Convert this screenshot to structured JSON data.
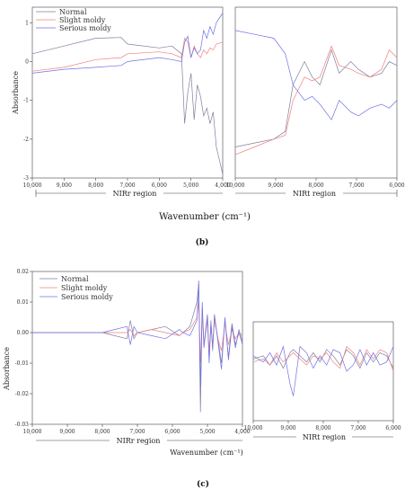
{
  "figure": {
    "panel_labels": [
      "(b)",
      "(c)"
    ],
    "ylabel": "Absorbance",
    "xlabel": "Wavenumber (cm⁻¹)",
    "region_labels": [
      "NIRr region",
      "NIRt region"
    ]
  },
  "colors": {
    "Normal": "#7f7f9e",
    "Slight moldy": "#f08080",
    "Serious moldy": "#7070e8"
  },
  "chart_data": [
    {
      "type": "line",
      "panel": "(b)",
      "ylabel": "Absorbance",
      "xlabel": "Wavenumber (cm⁻¹)",
      "legend": [
        "Normal",
        "Slight moldy",
        "Serious moldy"
      ],
      "legend_placement": "top-left",
      "left": {
        "region": "NIRr region",
        "xlim": [
          10000,
          4000
        ],
        "x_ticks": [
          "10,000",
          "9,000",
          "8,000",
          "7,000",
          "6,000",
          "5,000",
          "4,000"
        ],
        "ylim": [
          -3,
          1.4
        ],
        "y_ticks": [
          "-3",
          "-2",
          "-1",
          "0",
          "1"
        ],
        "x": [
          10000,
          9000,
          8000,
          7200,
          7000,
          6000,
          5600,
          5300,
          5200,
          5100,
          5000,
          4900,
          4800,
          4700,
          4600,
          4500,
          4400,
          4300,
          4200,
          4000
        ],
        "series": [
          {
            "name": "Normal",
            "values": [
              0.2,
              0.4,
              0.6,
              0.62,
              0.45,
              0.35,
              0.4,
              0.2,
              -1.6,
              -0.8,
              -0.3,
              -1.5,
              -0.6,
              -0.9,
              -1.4,
              -1.2,
              -1.6,
              -1.3,
              -2.2,
              -2.9
            ]
          },
          {
            "name": "Slight moldy",
            "values": [
              -0.25,
              -0.15,
              0.05,
              0.1,
              0.2,
              0.25,
              0.2,
              0.1,
              0.6,
              0.5,
              0.1,
              0.4,
              0.2,
              0.1,
              0.3,
              0.2,
              0.35,
              0.3,
              0.45,
              0.5
            ]
          },
          {
            "name": "Serious moldy",
            "values": [
              -0.3,
              -0.2,
              -0.15,
              -0.1,
              0.0,
              0.1,
              0.05,
              0.0,
              0.5,
              0.65,
              0.1,
              0.35,
              0.2,
              0.3,
              0.8,
              0.6,
              0.9,
              0.7,
              1.0,
              1.25
            ]
          }
        ]
      },
      "right": {
        "region": "NIRt region",
        "xlim": [
          10000,
          5800
        ],
        "x_ticks": [
          "10,000",
          "9,000",
          "8,000",
          "7,000",
          "6,000"
        ],
        "ylim": [
          -1.2,
          1.0
        ],
        "x": [
          10000,
          9500,
          9000,
          8700,
          8500,
          8200,
          8000,
          7800,
          7500,
          7300,
          7000,
          6800,
          6500,
          6200,
          6000,
          5800
        ],
        "series": [
          {
            "name": "Normal",
            "values": [
              -0.8,
              -0.75,
              -0.7,
              -0.6,
              0.0,
              0.3,
              0.1,
              0.0,
              0.45,
              0.15,
              0.3,
              0.2,
              0.1,
              0.15,
              0.3,
              0.25
            ]
          },
          {
            "name": "Slight moldy",
            "values": [
              -0.9,
              -0.8,
              -0.7,
              -0.65,
              -0.2,
              0.1,
              0.05,
              0.1,
              0.5,
              0.25,
              0.2,
              0.15,
              0.1,
              0.2,
              0.45,
              0.35
            ]
          },
          {
            "name": "Serious moldy",
            "values": [
              0.7,
              0.65,
              0.6,
              0.4,
              0.0,
              -0.2,
              -0.15,
              -0.25,
              -0.45,
              -0.2,
              -0.35,
              -0.4,
              -0.3,
              -0.25,
              -0.3,
              -0.2
            ]
          }
        ]
      }
    },
    {
      "type": "line",
      "panel": "(c)",
      "ylabel": "Absorbance",
      "xlabel": "Wavenumber (cm⁻¹)",
      "legend": [
        "Normal",
        "Slight moldy",
        "Serious moldy"
      ],
      "legend_placement": "top-left",
      "left": {
        "region": "NIRr region",
        "xlim": [
          10000,
          4000
        ],
        "x_ticks": [
          "10,000",
          "9,000",
          "8,000",
          "7,000",
          "6,000",
          "5,000",
          "4,000"
        ],
        "ylim": [
          -0.03,
          0.02
        ],
        "y_ticks": [
          "-0.03",
          "-0.02",
          "-0.01",
          "0.00",
          "0.01",
          "0.02"
        ],
        "x": [
          10000,
          9000,
          8000,
          7300,
          7200,
          7100,
          7000,
          6600,
          6200,
          5800,
          5700,
          5500,
          5300,
          5250,
          5200,
          5150,
          5100,
          5000,
          4950,
          4900,
          4850,
          4800,
          4700,
          4600,
          4500,
          4400,
          4300,
          4200,
          4100,
          4000
        ],
        "series": [
          {
            "name": "Normal",
            "values": [
              0,
              0,
              0,
              -0.002,
              0.004,
              -0.002,
              0,
              0.001,
              0.002,
              -0.001,
              0,
              0.002,
              0.01,
              0.016,
              -0.026,
              0.008,
              -0.004,
              0.006,
              -0.008,
              0.004,
              -0.006,
              0.005,
              -0.002,
              -0.01,
              0.004,
              -0.008,
              0.003,
              -0.004,
              0,
              -0.004
            ]
          },
          {
            "name": "Slight moldy",
            "values": [
              0,
              0,
              0,
              0,
              0.001,
              -0.001,
              0,
              0.001,
              0,
              -0.001,
              0,
              0.001,
              0.005,
              0.01,
              -0.01,
              0.006,
              -0.004,
              0.004,
              -0.006,
              0.002,
              -0.004,
              0.004,
              -0.002,
              -0.006,
              0.003,
              -0.004,
              0.001,
              -0.002,
              0,
              -0.001
            ]
          },
          {
            "name": "Serious moldy",
            "values": [
              0,
              0,
              0,
              0.002,
              -0.004,
              0.002,
              0,
              -0.001,
              -0.002,
              0.001,
              0,
              -0.001,
              0.004,
              0.017,
              -0.018,
              0.01,
              -0.005,
              0.005,
              -0.01,
              0.003,
              -0.005,
              0.006,
              -0.003,
              -0.012,
              0.005,
              -0.009,
              0.002,
              -0.005,
              0.001,
              -0.003
            ]
          }
        ]
      },
      "right": {
        "region": "NIRt region",
        "xlim": [
          10000,
          5800
        ],
        "x_ticks": [
          "10,000",
          "9,000",
          "8,000",
          "7,000",
          "6,000"
        ],
        "ylim": [
          -0.02,
          0.012
        ],
        "x": [
          10000,
          9700,
          9500,
          9300,
          9100,
          8900,
          8800,
          8600,
          8400,
          8200,
          8000,
          7800,
          7600,
          7400,
          7200,
          7000,
          6800,
          6600,
          6400,
          6200,
          6000,
          5800
        ],
        "series": [
          {
            "name": "Normal",
            "values": [
              0,
              0.001,
              -0.002,
              0.001,
              -0.003,
              0.002,
              0.003,
              0.001,
              -0.001,
              0.002,
              -0.001,
              0.003,
              0.001,
              -0.002,
              0.003,
              0.001,
              -0.003,
              0.002,
              -0.001,
              0.002,
              0.001,
              -0.003
            ]
          },
          {
            "name": "Slight moldy",
            "values": [
              -0.001,
              0,
              -0.002,
              0.002,
              -0.001,
              0.001,
              0.002,
              0,
              -0.002,
              0.001,
              0,
              0.002,
              -0.001,
              -0.003,
              0.004,
              0.002,
              -0.002,
              0.003,
              0,
              0.003,
              0.002,
              -0.004
            ]
          },
          {
            "name": "Serious moldy",
            "values": [
              0.001,
              -0.001,
              0.002,
              -0.002,
              0.004,
              -0.008,
              -0.012,
              0.004,
              0.002,
              -0.003,
              0.001,
              -0.002,
              0.003,
              0.002,
              -0.004,
              -0.002,
              0.003,
              -0.002,
              0.002,
              -0.002,
              -0.001,
              0.004
            ]
          }
        ]
      }
    }
  ]
}
